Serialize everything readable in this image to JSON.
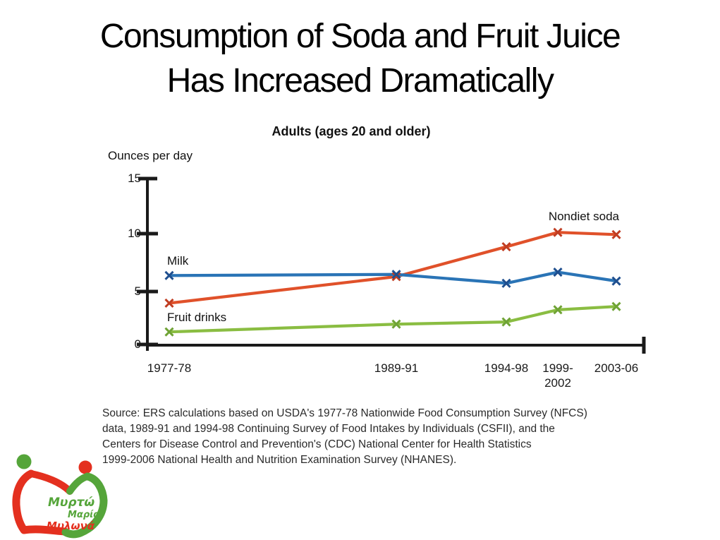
{
  "slide": {
    "title_lines": [
      "Consumption of Soda and Fruit Juice",
      "Has Increased Dramatically"
    ]
  },
  "chart": {
    "title": "Adults (ages 20 and older)",
    "y_axis_label": "Ounces per day",
    "y_tick_labels": [
      "15",
      "10",
      "5",
      "0"
    ],
    "x_tick_labels": [
      "1977-78",
      "1989-91",
      "1994-98",
      "1999-",
      "2002",
      "2003-06"
    ],
    "series_labels": {
      "milk": "Milk",
      "nondiet_soda": "Nondiet soda",
      "fruit_drinks": "Fruit drinks"
    }
  },
  "chart_data": {
    "type": "line",
    "title": "Adults (ages 20 and older)",
    "xlabel": "",
    "ylabel": "Ounces per day",
    "ylim": [
      0,
      15
    ],
    "y_ticks": [
      0,
      5,
      10,
      15
    ],
    "grid": false,
    "legend_position": "inline-labels",
    "axis_color": "#1a1a1a",
    "categories": [
      "1977-78",
      "1989-91",
      "1994-98",
      "1999-2002",
      "2003-06"
    ],
    "series": [
      {
        "name": "Nondiet soda",
        "color": "#e0512a",
        "marker_color": "#c03d22",
        "marker": "x",
        "values": [
          3.8,
          6.2,
          8.9,
          10.2,
          10.0
        ]
      },
      {
        "name": "Fruit drinks",
        "color": "#8abd42",
        "marker_color": "#6fa335",
        "marker": "x",
        "values": [
          1.2,
          1.9,
          2.1,
          3.2,
          3.5
        ]
      },
      {
        "name": "Milk",
        "color": "#2a74b6",
        "marker_color": "#1f4f8f",
        "marker": "x",
        "values": [
          6.3,
          6.4,
          5.6,
          6.6,
          5.8
        ]
      }
    ]
  },
  "source": {
    "lines": [
      "Source: ERS calculations based on USDA's 1977-78 Nationwide Food Consumption Survey (NFCS)",
      "data, 1989-91 and 1994-98 Continuing Survey of Food Intakes by Individuals (CSFII), and the",
      "Centers for Disease Control and Prevention's (CDC) National Center for Health Statistics",
      "1999-2006 National Health and Nutrition Examination Survey (NHANES)."
    ]
  },
  "logo": {
    "names": [
      "Μυρτώ",
      "Μαρία",
      "Μυλωνά"
    ],
    "green": "#55a53a",
    "red": "#e4301f"
  }
}
